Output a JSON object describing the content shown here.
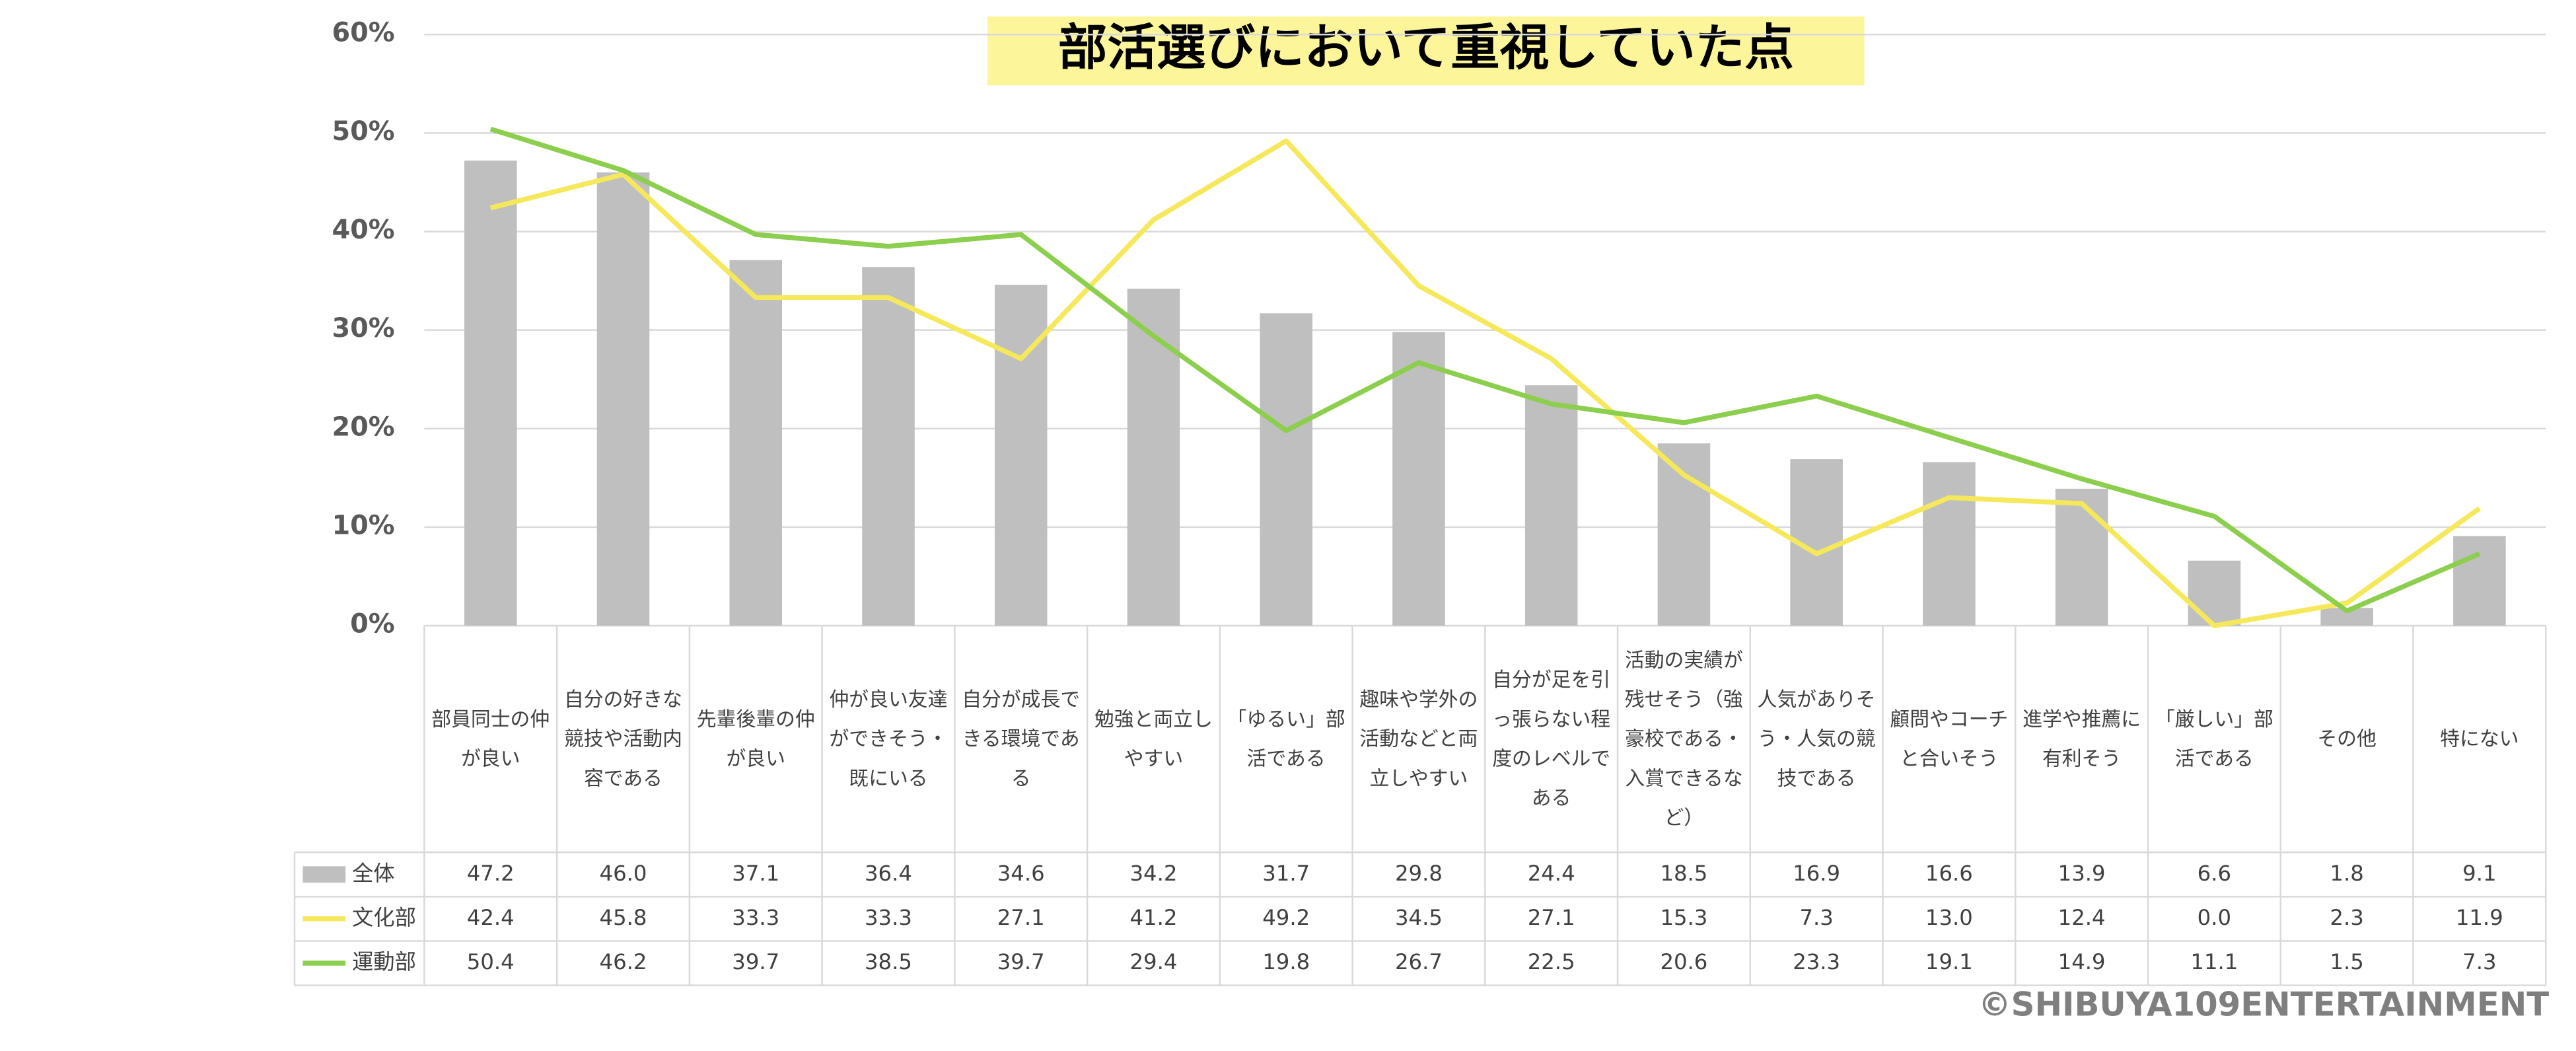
{
  "chart_data": {
    "type": "bar",
    "title": "部活選びにおいて重視していた点",
    "credit": "©SHIBUYA109ENTERTAINMENT",
    "categories": [
      "部員同士の仲が良い",
      "自分の好きな競技や活動内容である",
      "先輩後輩の仲が良い",
      "仲が良い友達ができそう・既にいる",
      "自分が成長できる環境である",
      "勉強と両立しやすい",
      "「ゆるい」部活である",
      "趣味や学外の活動などと両立しやすい",
      "自分が足を引っ張らない程度のレベルである",
      "活動の実績が残せそう（強豪校である・入賞できるなど）",
      "人気がありそう・人気の競技である",
      "顧問やコーチと合いそう",
      "進学や推薦に有利そう",
      "「厳しい」部活である",
      "その他",
      "特にない"
    ],
    "series": [
      {
        "name": "全体",
        "type": "bar",
        "color": "#bfbfbf",
        "values": [
          47.2,
          46.0,
          37.1,
          36.4,
          34.6,
          34.2,
          31.7,
          29.8,
          24.4,
          18.5,
          16.9,
          16.6,
          13.9,
          6.6,
          1.8,
          9.1
        ],
        "value_labels": [
          "47.2",
          "46.0",
          "37.1",
          "36.4",
          "34.6",
          "34.2",
          "31.7",
          "29.8",
          "24.4",
          "18.5",
          "16.9",
          "16.6",
          "13.9",
          "6.6",
          "1.8",
          "9.1"
        ]
      },
      {
        "name": "文化部",
        "type": "line",
        "color": "#f5e85a",
        "values": [
          42.4,
          45.8,
          33.3,
          33.3,
          27.1,
          41.2,
          49.2,
          34.5,
          27.1,
          15.3,
          7.3,
          13.0,
          12.4,
          0.0,
          2.3,
          11.9
        ],
        "value_labels": [
          "42.4",
          "45.8",
          "33.3",
          "33.3",
          "27.1",
          "41.2",
          "49.2",
          "34.5",
          "27.1",
          "15.3",
          "7.3",
          "13.0",
          "12.4",
          "0.0",
          "2.3",
          "11.9"
        ]
      },
      {
        "name": "運動部",
        "type": "line",
        "color": "#8ccf4e",
        "values": [
          50.4,
          46.2,
          39.7,
          38.5,
          39.7,
          29.4,
          19.8,
          26.7,
          22.5,
          20.6,
          23.3,
          19.1,
          14.9,
          11.1,
          1.5,
          7.3
        ],
        "value_labels": [
          "50.4",
          "46.2",
          "39.7",
          "38.5",
          "39.7",
          "29.4",
          "19.8",
          "26.7",
          "22.5",
          "20.6",
          "23.3",
          "19.1",
          "14.9",
          "11.1",
          "1.5",
          "7.3"
        ]
      }
    ],
    "ylim": [
      0,
      60
    ],
    "yticks": [
      {
        "value": 0,
        "label": "0%"
      },
      {
        "value": 10,
        "label": "10%"
      },
      {
        "value": 20,
        "label": "20%"
      },
      {
        "value": 30,
        "label": "30%"
      },
      {
        "value": 40,
        "label": "40%"
      },
      {
        "value": 50,
        "label": "50%"
      },
      {
        "value": 60,
        "label": "60%"
      }
    ],
    "grid": true
  }
}
